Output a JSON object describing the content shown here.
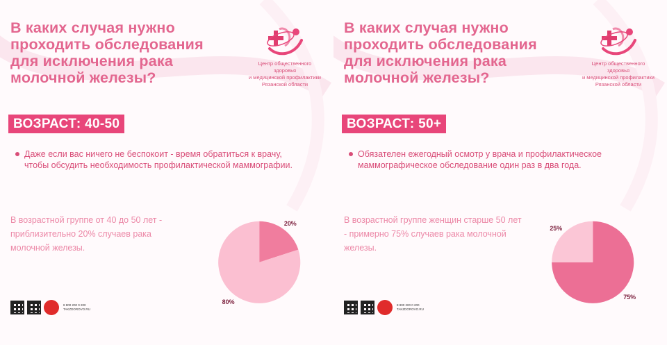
{
  "cards": [
    {
      "title": "В каких случая нужно проходить обследования для исключения рака молочной железы?",
      "org": {
        "line1": "Центр общественного здоровья",
        "line2": "и медицинской профилактики",
        "line3": "Рязанской области"
      },
      "age_label": "ВОЗРАСТ: 40-50",
      "bullet": "Даже если вас ничего не беспокоит - время обратиться к врачу, чтобы обсудить необходимость профилактической маммографии.",
      "stat_text": "В возрастной группе от 40 до 50 лет - приблизительно 20% случаев рака молочной железы.",
      "footer": {
        "phone": "8 800 200 0 200",
        "site": "TAKZDOROVO.RU"
      }
    },
    {
      "title": "В каких случая нужно проходить обследования для исключения рака молочной железы?",
      "org": {
        "line1": "Центр общественного здоровья",
        "line2": "и медицинской профилактики",
        "line3": "Рязанской области"
      },
      "age_label": "ВОЗРАСТ: 50+",
      "bullet": "Обязателен ежегодный осмотр у врача и профилактическое маммографическое обследование один раз в два года.",
      "stat_text": "В возрастной группе женщин старше 50 лет - примерно 75% случаев рака молочной железы.",
      "footer": {
        "phone": "8 800 200 0 200",
        "site": "TAKZDOROVO.RU"
      }
    }
  ],
  "chart_data": [
    {
      "type": "pie",
      "categories": [
        "",
        ""
      ],
      "values": [
        20,
        80
      ],
      "labels": [
        "20%",
        "80%"
      ],
      "colors": [
        "#f07d9e",
        "#fbbfd1"
      ]
    },
    {
      "type": "pie",
      "categories": [
        "",
        ""
      ],
      "values": [
        75,
        25
      ],
      "labels": [
        "75%",
        "25%"
      ],
      "colors": [
        "#ec6f95",
        "#fbc6d6"
      ]
    }
  ],
  "theme": {
    "title_color": "#e3668f",
    "badge_bg": "#e8467a",
    "ribbon_color": "#fbe3ec"
  }
}
